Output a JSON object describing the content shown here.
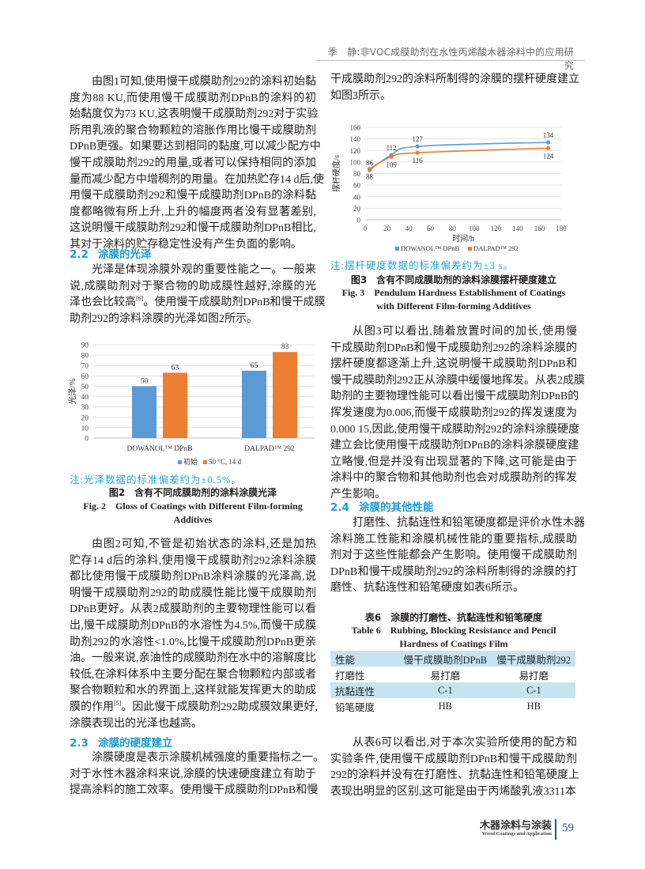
{
  "header": {
    "running_title": "季　静:非VOC成膜助剂在水性丙烯酸木器涂料中的应用研究"
  },
  "left": {
    "p1": [
      "由图1可知,使用慢干成膜助剂292的涂料初始黏",
      "度为88 KU,而使用慢干成膜助剂DPnB的涂料的初",
      "始黏度仅为73 KU,这表明慢干成膜助剂292对于实验",
      "所用乳液的聚合物颗粒的溶胀作用比慢干成膜助剂",
      "DPnB更强。如果要达到相同的黏度,可以减少配方中",
      "慢干成膜助剂292的用量,或者可以保持相同的添加",
      "量而减少配方中增稠剂的用量。在加热贮存14 d后,使",
      "用慢干成膜助剂292和慢干成膜助剂DPnB的涂料黏",
      "度都略微有所上升,上升的幅度两者没有显著差别,",
      "这说明慢干成膜助剂292和慢干成膜助剂DPnB相比,",
      "其对于涂料的贮存稳定性没有产生负面的影响。"
    ],
    "s22": {
      "num": "2.2",
      "title": "涂膜的光泽"
    },
    "p2": [
      "光泽是体现涂膜外观的重要性能之一。一般来",
      "说,成膜助剂对于聚合物的助成膜性越好,涂膜的光",
      {
        "pre": "泽也会比较高",
        "sup": "[6]",
        "post": "。使用慢干成膜助剂DPnB和慢干成膜"
      },
      "助剂292的涂料涂膜的光泽如图2所示。"
    ],
    "fig2": {
      "note": "注:光泽数据的标准偏差约为±0.5%。",
      "cap_cn": "图2　含有不同成膜助剂的涂料涂膜光泽",
      "cap_en1": "Fig. 2　Gloss of Coatings with Different Film-forming",
      "cap_en2": "Additives"
    },
    "p3": [
      "由图2可知,不管是初始状态的涂料,还是加热",
      "贮存14 d后的涂料,使用慢干成膜助剂292涂料涂膜",
      "都比使用慢干成膜助剂DPnB涂料涂膜的光泽高,说",
      "明慢干成膜助剂292的助成膜性能比慢干成膜助剂",
      "DPnB更好。从表2成膜助剂的主要物理性能可以看",
      "出,慢干成膜助剂DPnB的水溶性为4.5%,而慢干成膜",
      "助剂292的水溶性<1.0%,比慢干成膜助剂DPnB更亲",
      "油。一般来说,亲油性的成膜助剂在水中的溶解度比",
      "较低,在涂料体系中主要分配在聚合物颗粒内部或者",
      "聚合物颗粒和水的界面上,这样就能发挥更大的助成",
      {
        "pre": "膜的作用",
        "sup": "[5]",
        "post": "。因此慢干成膜助剂292助成膜效果更好,"
      },
      "涂膜表现出的光泽也越高。"
    ],
    "s23": {
      "num": "2.3",
      "title": "涂膜的硬度建立"
    },
    "p4": [
      "涂膜硬度是表示涂膜机械强度的重要指标之一。",
      "对于水性木器涂料来说,涂膜的快速硬度建立有助于",
      "提高涂料的施工效率。使用慢干成膜助剂DPnB和慢"
    ]
  },
  "right": {
    "p0": [
      "干成膜助剂292的涂料所制得的涂膜的摆杆硬度建立",
      "如图3所示。"
    ],
    "fig3": {
      "note": "注:摆杆硬度数据的标准偏差约为±3 s。",
      "cap_cn": "图3　含有不同成膜助剂的涂料涂膜摆杆硬度建立",
      "cap_en1": "Fig. 3　Pendulum Hardness Establishment of Coatings",
      "cap_en2": "with Different Film-forming Additives"
    },
    "p5": [
      "从图3可以看出,随着放置时间的加长,使用慢",
      "干成膜助剂DPnB和慢干成膜助剂292的涂料涂膜的",
      "摆杆硬度都逐渐上升,这说明慢干成膜助剂DPnB和",
      "慢干成膜助剂292正从涂膜中缓慢地挥发。从表2成膜",
      "助剂的主要物理性能可以看出慢干成膜助剂DPnB的",
      "挥发速度为0.006,而慢干成膜助剂292的挥发速度为",
      "0.000 15,因此,使用慢干成膜助剂292的涂料涂膜硬度",
      "建立会比使用慢干成膜助剂DPnB的涂料涂膜硬度建",
      "立略慢,但是并没有出现显著的下降,这可能是由于",
      "涂料中的聚合物和其他助剂也会对成膜助剂的挥发",
      "产生影响。"
    ],
    "s24": {
      "num": "2.4",
      "title": "涂膜的其他性能"
    },
    "p6": [
      "打磨性、抗黏连性和铅笔硬度都是评价水性木器",
      "涂料施工性能和涂膜机械性能的重要指标,成膜助",
      "剂对于这些性能都会产生影响。使用慢干成膜助剂",
      "DPnB和慢干成膜助剂292的涂料所制得的涂膜的打",
      "磨性、抗黏连性和铅笔硬度如表6所示。"
    ],
    "table6": {
      "cap_cn": "表6　涂膜的打磨性、抗黏连性和铅笔硬度",
      "cap_en1": "Table 6　Rubbing, Blocking Resistance and Pencil",
      "cap_en2": "Hardness of Coatings Film",
      "headers": [
        "性能",
        "慢干成膜助剂DPnB",
        "慢干成膜助剂292"
      ],
      "rows": [
        [
          "打磨性",
          "易打磨",
          "易打磨"
        ],
        [
          "抗黏连性",
          "C-1",
          "C-1"
        ],
        [
          "铅笔硬度",
          "HB",
          "HB"
        ]
      ],
      "header_color": "#c6e3f2"
    },
    "p7": [
      "从表6可以看出,对于本次实验所使用的配方和",
      "实验条件,使用慢干成膜助剂DPnB和慢干成膜助剂",
      "292的涂料并没有在打磨性、抗黏连性和铅笔硬度上",
      "表现出明显的区别,这可能是由于丙烯酸乳液3311本"
    ]
  },
  "footer": {
    "journal_cn": "木器涂料与涂装",
    "journal_en": "Wood Coatings and Application",
    "page": "59"
  },
  "chart_data": [
    {
      "type": "bar",
      "categories": [
        "DOWANOL™ DPnB",
        "DALPAD™ 292"
      ],
      "series": [
        {
          "name": "初始",
          "values": [
            50,
            65
          ],
          "color": "#5b9bd5"
        },
        {
          "name": "50 °C, 14 d",
          "values": [
            63,
            83
          ],
          "color": "#ed7d31"
        }
      ],
      "ylabel": "光泽/%",
      "ylim": [
        0,
        90
      ],
      "yticks": [
        0,
        10,
        20,
        30,
        40,
        50,
        60,
        70,
        80,
        90
      ],
      "grid": true,
      "legend": "bottom",
      "data_labels": true
    },
    {
      "type": "line",
      "x": [
        4,
        24,
        48,
        168
      ],
      "series": [
        {
          "name": "DOWANOL™ DPnB",
          "values": [
            86,
            112,
            127,
            134
          ],
          "color": "#5b9bd5",
          "label_pos": "above"
        },
        {
          "name": "DALPAD™ 292",
          "values": [
            88,
            109,
            116,
            124
          ],
          "color": "#ed7d31",
          "label_pos": "below"
        }
      ],
      "xlabel": "时间/h",
      "ylabel": "摆杆硬度/s",
      "xlim": [
        0,
        180
      ],
      "ylim": [
        0,
        160
      ],
      "xticks": [
        0,
        20,
        40,
        60,
        80,
        100,
        120,
        140,
        160,
        180
      ],
      "yticks": [
        0,
        20,
        40,
        60,
        80,
        100,
        120,
        140,
        160
      ],
      "grid": true,
      "legend": "bottom",
      "smooth": true,
      "data_labels": true
    }
  ]
}
